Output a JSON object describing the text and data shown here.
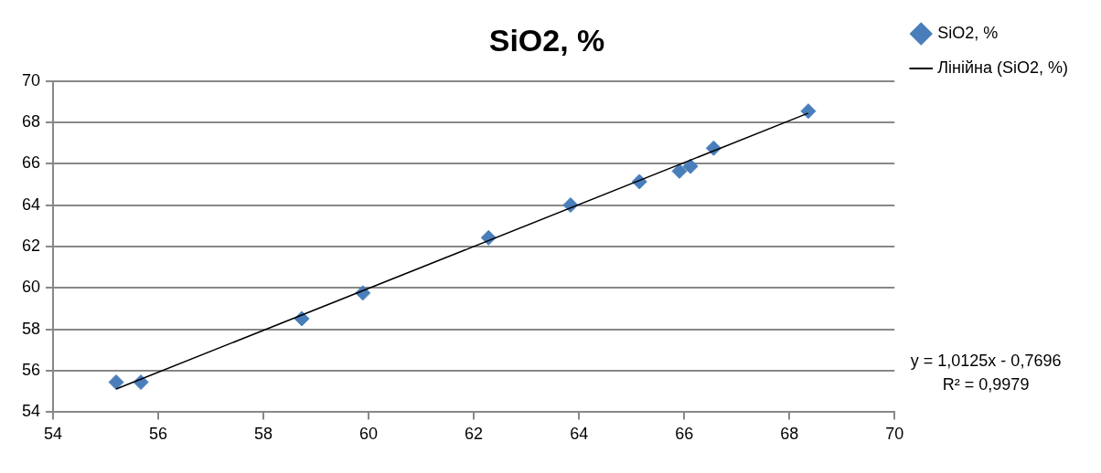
{
  "chart_data": {
    "type": "scatter",
    "title": "SiO2, %",
    "x": [
      55.2,
      55.67,
      58.73,
      59.89,
      62.28,
      63.84,
      65.15,
      65.91,
      66.12,
      66.56,
      68.36
    ],
    "series": [
      {
        "name": "SiO2, %",
        "type": "scatter",
        "color": "#4a7ebb",
        "marker": "diamond",
        "values": [
          55.45,
          55.45,
          58.52,
          59.76,
          62.43,
          64.01,
          65.14,
          65.65,
          65.88,
          66.76,
          68.55
        ]
      },
      {
        "name": "Лінійна (SiO2, %)",
        "type": "line",
        "color": "#000000",
        "marker": "none",
        "line_style": "solid",
        "x": [
          55.2,
          68.36
        ],
        "values": [
          55.12,
          68.45
        ]
      }
    ],
    "xlim": [
      54,
      70
    ],
    "xticks": [
      54,
      56,
      58,
      60,
      62,
      64,
      66,
      68,
      70
    ],
    "ylim": [
      54,
      70
    ],
    "yticks": [
      54,
      56,
      58,
      60,
      62,
      64,
      66,
      68,
      70
    ],
    "grid": "y",
    "legend": "right",
    "annotations": [
      "y = 1,0125x - 0,7696",
      "R² = 0,9979"
    ]
  }
}
